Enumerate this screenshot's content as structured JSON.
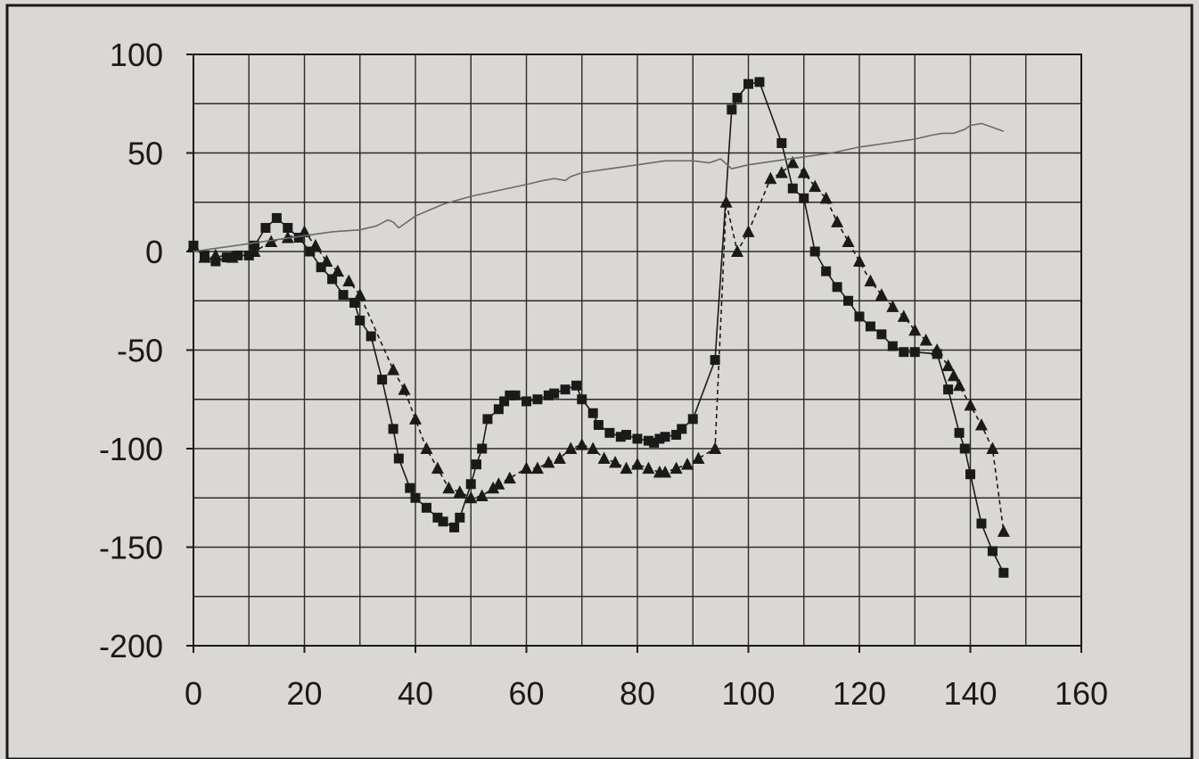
{
  "chart_data": {
    "type": "line",
    "title": "",
    "xlabel": "",
    "ylabel": "",
    "xlim": [
      0,
      160
    ],
    "ylim": [
      -200,
      100
    ],
    "xticks": [
      0,
      20,
      40,
      60,
      80,
      100,
      120,
      140,
      160
    ],
    "yticks": [
      100,
      50,
      0,
      -50,
      -100,
      -150,
      -200
    ],
    "xtick_labels": [
      "0",
      "20",
      "40",
      "60",
      "80",
      "100",
      "120",
      "140",
      "160"
    ],
    "ytick_labels": [
      "100",
      "50",
      "0",
      "-50",
      "-100",
      "-150",
      "-200"
    ],
    "grid": true,
    "colors": {
      "background": "#d9d8d4",
      "plot": "#d9d8d4",
      "grid": "#2a2a2a",
      "ink": "#1a1a1a",
      "thin": "#6a6a6a"
    },
    "series": [
      {
        "marker": "square",
        "line": "solid",
        "x": [
          0,
          2,
          4,
          6,
          8,
          10,
          11,
          13,
          15,
          17,
          19,
          21,
          23,
          25,
          27,
          29,
          30,
          32,
          34,
          36,
          37,
          39,
          40,
          42,
          44,
          45,
          47,
          48,
          50,
          51,
          52,
          53,
          55,
          56,
          57,
          58,
          60,
          62,
          64,
          65,
          67,
          69,
          70,
          72,
          73,
          75,
          77,
          78,
          80,
          82,
          83,
          84,
          85,
          87,
          88,
          90,
          94,
          97,
          98,
          100,
          102,
          106,
          108,
          110,
          112,
          114,
          116,
          118,
          120,
          122,
          124,
          126,
          128,
          130,
          134,
          136,
          138,
          139,
          140,
          142,
          144,
          146
        ],
        "y": [
          3,
          -2,
          -5,
          -3,
          -2,
          -2,
          3,
          12,
          17,
          12,
          7,
          0,
          -8,
          -14,
          -22,
          -26,
          -35,
          -43,
          -65,
          -90,
          -105,
          -120,
          -125,
          -130,
          -135,
          -137,
          -140,
          -135,
          -118,
          -108,
          -100,
          -85,
          -80,
          -76,
          -73,
          -73,
          -76,
          -75,
          -73,
          -72,
          -70,
          -68,
          -75,
          -82,
          -88,
          -92,
          -94,
          -93,
          -95,
          -96,
          -97,
          -95,
          -94,
          -93,
          -90,
          -85,
          -55,
          72,
          78,
          85,
          86,
          55,
          32,
          27,
          0,
          -10,
          -18,
          -25,
          -33,
          -38,
          -42,
          -48,
          -51,
          -51,
          -52,
          -70,
          -92,
          -100,
          -113,
          -138,
          -152,
          -163
        ]
      },
      {
        "marker": "triangle",
        "line": "dashed",
        "x": [
          0,
          2,
          4,
          7,
          11,
          14,
          17,
          20,
          22,
          24,
          26,
          28,
          30,
          36,
          38,
          40,
          42,
          44,
          46,
          48,
          50,
          52,
          54,
          55,
          57,
          60,
          62,
          64,
          66,
          68,
          70,
          72,
          74,
          76,
          78,
          80,
          82,
          84,
          85,
          87,
          89,
          91,
          94,
          96,
          98,
          100,
          104,
          106,
          108,
          110,
          112,
          114,
          116,
          118,
          120,
          122,
          124,
          126,
          128,
          130,
          132,
          134,
          136,
          137,
          138,
          140,
          142,
          144,
          146
        ],
        "y": [
          3,
          -3,
          -2,
          -3,
          0,
          5,
          7,
          10,
          3,
          -5,
          -10,
          -15,
          -22,
          -60,
          -70,
          -85,
          -100,
          -110,
          -120,
          -122,
          -125,
          -124,
          -120,
          -118,
          -115,
          -110,
          -110,
          -107,
          -105,
          -100,
          -98,
          -100,
          -105,
          -107,
          -110,
          -108,
          -110,
          -112,
          -112,
          -110,
          -108,
          -105,
          -100,
          25,
          0,
          10,
          37,
          40,
          45,
          40,
          33,
          27,
          15,
          5,
          -5,
          -15,
          -22,
          -28,
          -33,
          -40,
          -45,
          -50,
          -58,
          -63,
          -68,
          -78,
          -88,
          -100,
          -142
        ]
      },
      {
        "marker": "none",
        "line": "thin",
        "x": [
          0,
          5,
          10,
          15,
          20,
          25,
          30,
          33,
          35,
          36,
          37,
          38,
          40,
          45,
          50,
          55,
          60,
          63,
          65,
          67,
          68,
          70,
          75,
          80,
          85,
          90,
          93,
          95,
          97,
          100,
          105,
          110,
          115,
          120,
          125,
          130,
          133,
          135,
          137,
          139,
          140,
          142,
          144,
          146
        ],
        "y": [
          0,
          2,
          4,
          6,
          8,
          10,
          11,
          13,
          16,
          15,
          12,
          14,
          18,
          24,
          28,
          31,
          34,
          36,
          37,
          36,
          38,
          40,
          42,
          44,
          46,
          46,
          45,
          47,
          42,
          44,
          46,
          48,
          50,
          53,
          55,
          57,
          59,
          60,
          60,
          62,
          64,
          65,
          63,
          61
        ]
      }
    ]
  }
}
